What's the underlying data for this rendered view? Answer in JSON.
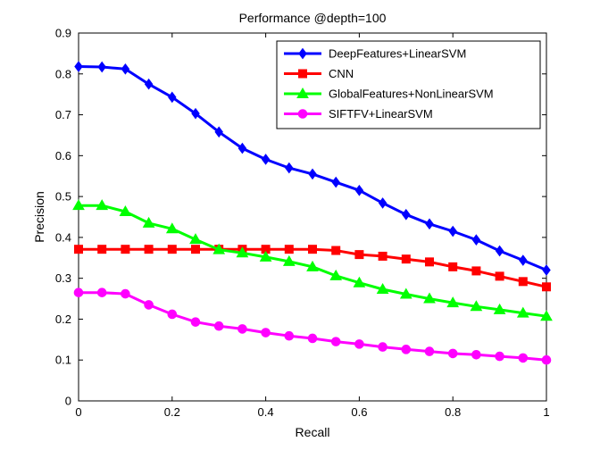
{
  "chart_data": {
    "type": "line",
    "title": "Performance @depth=100",
    "xlabel": "Recall",
    "ylabel": "Precision",
    "xlim": [
      0,
      1
    ],
    "ylim": [
      0,
      0.9
    ],
    "xticks": [
      "0",
      "0.2",
      "0.4",
      "0.6",
      "0.8",
      "1"
    ],
    "yticks": [
      "0",
      "0.1",
      "0.2",
      "0.3",
      "0.4",
      "0.5",
      "0.6",
      "0.7",
      "0.8",
      "0.9"
    ],
    "grid": false,
    "legend_position": "top-right",
    "x": [
      0,
      0.05,
      0.1,
      0.15,
      0.2,
      0.25,
      0.3,
      0.35,
      0.4,
      0.45,
      0.5,
      0.55,
      0.6,
      0.65,
      0.7,
      0.75,
      0.8,
      0.85,
      0.9,
      0.95,
      1
    ],
    "series": [
      {
        "name": "DeepFeatures+LinearSVM",
        "color": "#0000ff",
        "marker": "diamond",
        "values": [
          0.818,
          0.817,
          0.812,
          0.775,
          0.743,
          0.703,
          0.658,
          0.618,
          0.591,
          0.57,
          0.555,
          0.535,
          0.515,
          0.484,
          0.456,
          0.433,
          0.415,
          0.394,
          0.367,
          0.344,
          0.32
        ]
      },
      {
        "name": "CNN",
        "color": "#ff0000",
        "marker": "square",
        "values": [
          0.371,
          0.371,
          0.371,
          0.371,
          0.371,
          0.371,
          0.371,
          0.371,
          0.371,
          0.371,
          0.371,
          0.368,
          0.358,
          0.354,
          0.347,
          0.34,
          0.328,
          0.318,
          0.305,
          0.292,
          0.279
        ]
      },
      {
        "name": "GlobalFeatures+NonLinearSVM",
        "color": "#00ff00",
        "marker": "triangle",
        "values": [
          0.478,
          0.478,
          0.463,
          0.435,
          0.421,
          0.395,
          0.37,
          0.362,
          0.352,
          0.341,
          0.328,
          0.306,
          0.289,
          0.273,
          0.261,
          0.25,
          0.24,
          0.231,
          0.223,
          0.215,
          0.207
        ]
      },
      {
        "name": "SIFTFV+LinearSVM",
        "color": "#ff00ff",
        "marker": "circle",
        "values": [
          0.265,
          0.265,
          0.262,
          0.235,
          0.212,
          0.193,
          0.183,
          0.176,
          0.167,
          0.159,
          0.153,
          0.145,
          0.139,
          0.132,
          0.126,
          0.121,
          0.116,
          0.113,
          0.109,
          0.105,
          0.1
        ]
      }
    ]
  }
}
